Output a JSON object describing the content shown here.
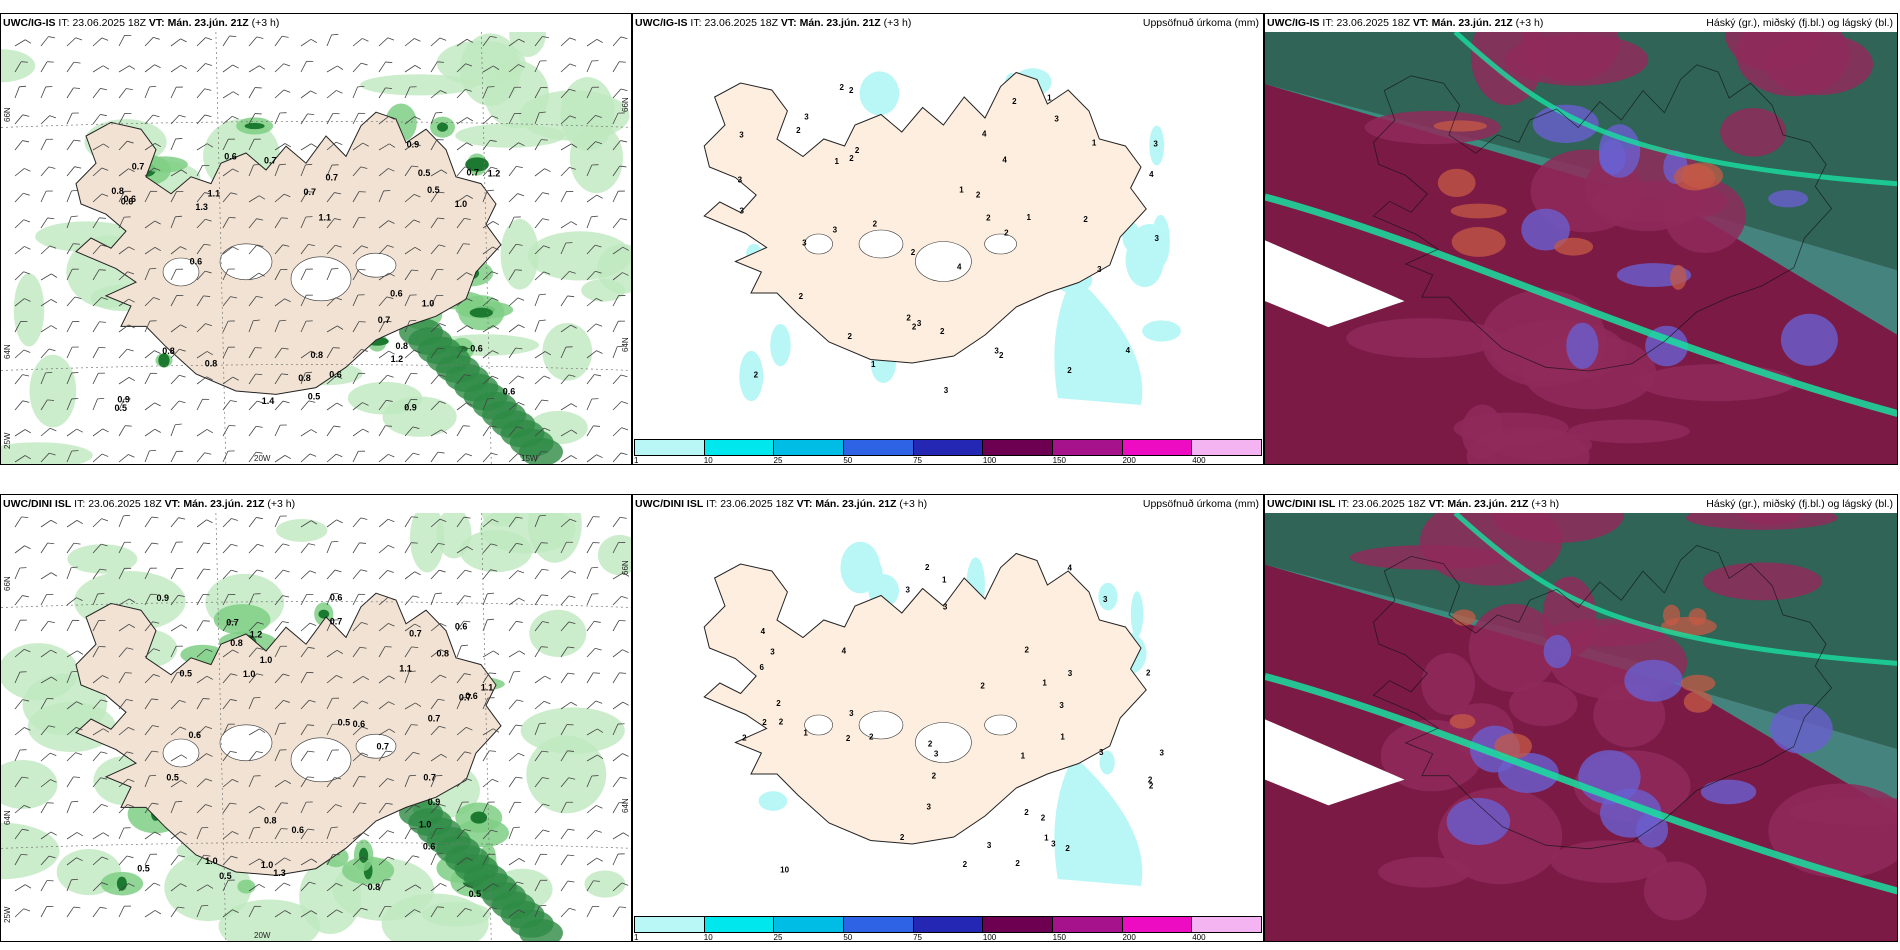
{
  "rows": [
    {
      "model": "UWC/IG-IS",
      "it_label": "IT:",
      "it": "23.06.2025 18Z",
      "vt_label": "VT:",
      "vt": "Mán. 23.jún. 21Z",
      "lead": "(+3 h)"
    },
    {
      "model": "UWC/DINI ISL",
      "it_label": "IT:",
      "it": "23.06.2025 18Z",
      "vt_label": "VT:",
      "vt": "Mán. 23.jún. 21Z",
      "lead": "(+3 h)"
    }
  ],
  "accum_title": "Uppsöfnuð úrkoma (mm)",
  "cloud_title": "Háský (gr.), miðský (fj.bl.) og lágský (bl.)",
  "axis_labels": {
    "lat66": "66N",
    "lat64": "64N",
    "lon25": "25W",
    "lon20": "20W",
    "lon15": "15W",
    "lat66_right": "66N",
    "lat64_right": "64N"
  },
  "colorbar": {
    "colors": [
      "#b9f6f6",
      "#00e8ee",
      "#00bde6",
      "#2f63e6",
      "#2427b3",
      "#6e0052",
      "#a5128b",
      "#ee0cc2",
      "#f4b4f2"
    ],
    "labels": [
      "1",
      "10",
      "25",
      "50",
      "75",
      "100",
      "150",
      "200",
      "400"
    ]
  },
  "precip_labels_top": [
    "1.2",
    "0.6",
    "1.1",
    "0.9",
    "0.7",
    "0.6",
    "0.7",
    "0.8",
    "0.6",
    "0.7",
    "0.5",
    "1.4",
    "0.9",
    "1.0",
    "0.8",
    "0.7",
    "0.5",
    "0.6",
    "0.8",
    "0.5",
    "1.0",
    "0.9",
    "0.7",
    "0.6",
    "1.2",
    "0.7",
    "0.6",
    "0.5",
    "1.3",
    "0.8",
    "0.6",
    "1.1",
    "0.8",
    "0.8",
    "0.6"
  ],
  "precip_labels_bottom": [
    "0.5",
    "0.8",
    "1.3",
    "1.0",
    "0.9",
    "0.8",
    "0.7",
    "1.1",
    "0.5",
    "0.6",
    "0.7",
    "1.0",
    "1.0",
    "0.6",
    "0.8",
    "0.5",
    "0.6",
    "0.7",
    "0.5",
    "0.6",
    "0.8",
    "0.5",
    "1.2",
    "0.7",
    "0.6",
    "0.7",
    "1.0",
    "0.6",
    "0.9",
    "0.7",
    "1.1",
    "1.0",
    "0.6",
    "0.7",
    "0.5"
  ],
  "accum_labels_top": [
    "1",
    "3",
    "2",
    "3",
    "2",
    "3",
    "2",
    "1",
    "4",
    "3",
    "2",
    "2",
    "3",
    "2",
    "3",
    "2",
    "3",
    "4",
    "3",
    "2",
    "1",
    "2",
    "3",
    "2",
    "4",
    "2",
    "2",
    "2",
    "1",
    "2",
    "3",
    "2",
    "3",
    "4",
    "3",
    "2",
    "1",
    "4",
    "2",
    "2",
    "1",
    "2",
    "3",
    "2"
  ],
  "accum_labels_bottom": [
    "2",
    "1",
    "3",
    "2",
    "3",
    "10",
    "4",
    "6",
    "2",
    "3",
    "2",
    "3",
    "4",
    "2",
    "3",
    "2",
    "3",
    "2",
    "1",
    "2",
    "3",
    "3",
    "2",
    "2",
    "1",
    "2",
    "3",
    "2",
    "2",
    "4",
    "2",
    "1",
    "2",
    "3",
    "2",
    "2",
    "2",
    "1",
    "3",
    "3",
    "1",
    "2",
    "3",
    "2"
  ]
}
